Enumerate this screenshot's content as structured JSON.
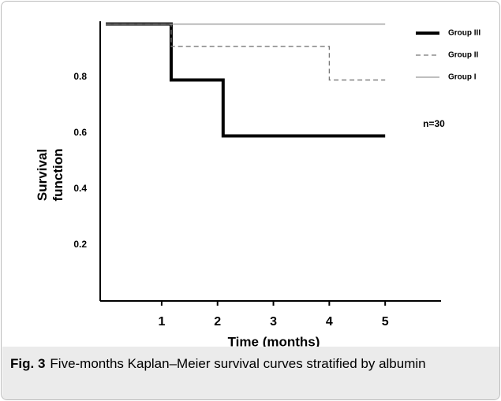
{
  "chart_data": {
    "type": "step",
    "x_label": "Time (months)",
    "y_label": "Survival function",
    "annotation": "n=30",
    "caption_label": "Fig. 3",
    "caption": "Five-months Kaplan–Meier survival curves stratified by albumin",
    "xlim": [
      -0.1,
      6
    ],
    "xticks": [
      1,
      2,
      3,
      4,
      5
    ],
    "ylim": [
      0,
      1
    ],
    "yticks": [
      0.2,
      0.4,
      0.6,
      0.8
    ],
    "series": [
      {
        "name": "Group III",
        "color": "#000000",
        "style": "solid",
        "width": 4,
        "x": [
          0,
          1.17,
          2.1,
          5
        ],
        "values": [
          0.99,
          0.79,
          0.59,
          0.59
        ]
      },
      {
        "name": "Group II",
        "color": "#777777",
        "style": "dashed",
        "width": 1.3,
        "x": [
          0,
          1.17,
          4,
          5
        ],
        "values": [
          0.99,
          0.91,
          0.79,
          0.79
        ]
      },
      {
        "name": "Group I",
        "color": "#999999",
        "style": "solid",
        "width": 1.3,
        "x": [
          0,
          5
        ],
        "values": [
          0.99,
          0.99
        ]
      }
    ]
  }
}
